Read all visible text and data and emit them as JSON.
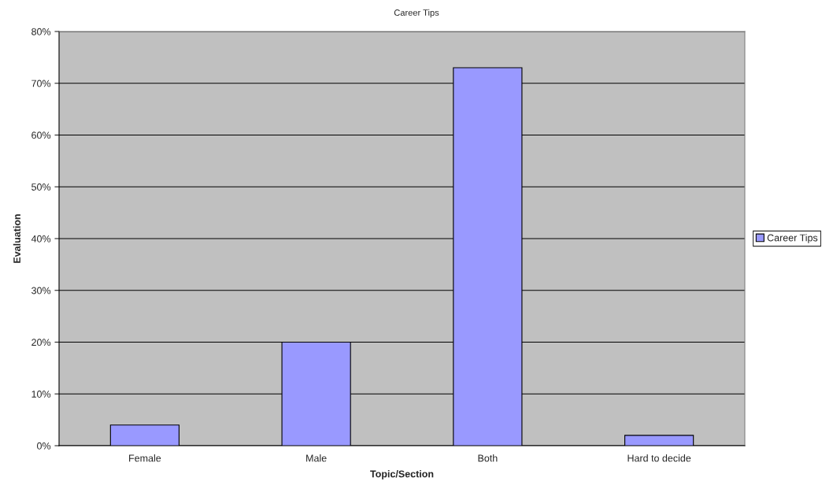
{
  "chart_data": {
    "type": "bar",
    "title": "Career Tips",
    "xlabel": "Topic/Section",
    "ylabel": "Evaluation",
    "categories": [
      "Female",
      "Male",
      "Both",
      "Hard to decide"
    ],
    "series": [
      {
        "name": "Career Tips",
        "color": "#9999ff",
        "values": [
          4,
          20,
          73,
          2
        ]
      }
    ],
    "ylim": [
      0,
      80
    ],
    "yticks": [
      {
        "value": 0,
        "label": "0%"
      },
      {
        "value": 10,
        "label": "10%"
      },
      {
        "value": 20,
        "label": "20%"
      },
      {
        "value": 30,
        "label": "30%"
      },
      {
        "value": 40,
        "label": "40%"
      },
      {
        "value": 50,
        "label": "50%"
      },
      {
        "value": 60,
        "label": "60%"
      },
      {
        "value": 70,
        "label": "70%"
      },
      {
        "value": 80,
        "label": "80%"
      }
    ],
    "grid": "y",
    "legend": "right"
  }
}
